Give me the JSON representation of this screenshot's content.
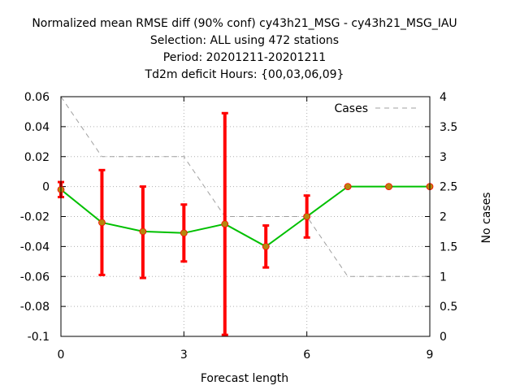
{
  "chart_data": {
    "type": "line",
    "title_lines": [
      "Normalized mean RMSE diff (90% conf) cy43h21_MSG - cy43h21_MSG_IAU",
      "Selection: ALL using   472 stations",
      "Period: 20201211-20201211",
      "Td2m deficit   Hours: {00,03,06,09}"
    ],
    "xlabel": "Forecast length",
    "ylabel": "",
    "y2label": "No cases",
    "xlim": [
      0,
      9
    ],
    "ylim": [
      -0.1,
      0.06
    ],
    "y2lim": [
      0,
      4
    ],
    "xticks": [
      "0",
      "3",
      "6",
      "9"
    ],
    "xtick_values": [
      0,
      3,
      6,
      9
    ],
    "yticks": [
      "0.06",
      "0.04",
      "0.02",
      "0",
      "-0.02",
      "-0.04",
      "-0.06",
      "-0.08",
      "-0.1"
    ],
    "ytick_values": [
      0.06,
      0.04,
      0.02,
      0,
      -0.02,
      -0.04,
      -0.06,
      -0.08,
      -0.1
    ],
    "y2ticks": [
      "4",
      "3.5",
      "3",
      "2.5",
      "2",
      "1.5",
      "1",
      "0.5",
      "0"
    ],
    "y2tick_values": [
      4,
      3.5,
      3,
      2.5,
      2,
      1.5,
      1,
      0.5,
      0
    ],
    "grid": true,
    "legend_position": "top-right",
    "diff_series": {
      "x": [
        0,
        1,
        2,
        3,
        4,
        5,
        6,
        7,
        8,
        9
      ],
      "y": [
        -0.002,
        -0.024,
        -0.03,
        -0.031,
        -0.025,
        -0.04,
        -0.02,
        0.0,
        0.0,
        0.0
      ],
      "err_low": [
        -0.007,
        -0.059,
        -0.061,
        -0.05,
        -0.099,
        -0.054,
        -0.034,
        0.0,
        0.0,
        0.0
      ],
      "err_high": [
        0.003,
        0.011,
        0.0,
        -0.012,
        0.049,
        -0.026,
        -0.006,
        0.0,
        0.0,
        0.0
      ],
      "line_color": "#00c000",
      "marker_color": "#b8860b",
      "errorbar_color": "#ff0000"
    },
    "cases_series": {
      "name": "Cases",
      "x": [
        0,
        1,
        2,
        3,
        4,
        5,
        6,
        7,
        8,
        9
      ],
      "y": [
        4,
        3,
        3,
        3,
        2,
        2,
        2,
        1,
        1,
        1
      ],
      "color": "#a0a0a0"
    }
  }
}
